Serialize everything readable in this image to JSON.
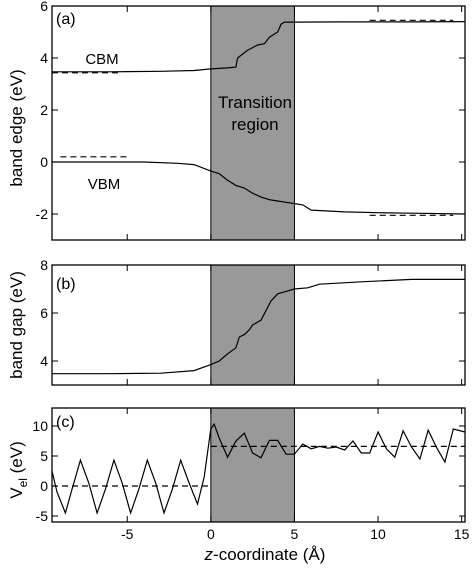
{
  "figure": {
    "x_axis": {
      "label_italic": "z",
      "label_rest": "-coordinate (Å)",
      "ticks": [
        "-5",
        "0",
        "5",
        "10",
        "15"
      ],
      "tick_values": [
        -5,
        0,
        5,
        10,
        15
      ],
      "range": [
        -9.5,
        15.2
      ]
    },
    "transition_region": {
      "x_start": 0,
      "x_end": 5,
      "label_line1": "Transition",
      "label_line2": "region"
    }
  },
  "chart_data": [
    {
      "type": "line",
      "panel_tag": "(a)",
      "ylabel": "band edge (eV)",
      "ylim": [
        -3,
        6
      ],
      "yticks": [
        "-2",
        "0",
        "2",
        "4",
        "6"
      ],
      "ytick_values": [
        -2,
        0,
        2,
        4,
        6
      ],
      "annotations": [
        "CBM",
        "VBM"
      ],
      "series": [
        {
          "name": "CBM",
          "x": [
            -9.5,
            -6,
            -3,
            -1,
            0,
            1,
            1.5,
            1.6,
            1.9,
            2.2,
            2.5,
            2.8,
            3.2,
            3.5,
            4,
            4.2,
            4.4,
            5,
            8,
            12,
            15.2
          ],
          "y": [
            3.47,
            3.47,
            3.49,
            3.52,
            3.58,
            3.62,
            3.65,
            4.0,
            4.15,
            4.3,
            4.4,
            4.5,
            4.55,
            4.8,
            5.0,
            5.3,
            5.38,
            5.38,
            5.39,
            5.39,
            5.4
          ]
        },
        {
          "name": "VBM",
          "x": [
            -9.5,
            -4,
            -2,
            -1,
            0,
            0.5,
            1,
            1.5,
            2,
            2.5,
            3,
            3.5,
            4,
            4.5,
            5,
            5.5,
            6,
            8,
            10,
            12,
            15.2
          ],
          "y": [
            0.0,
            0.0,
            -0.05,
            -0.1,
            -0.35,
            -0.45,
            -0.7,
            -0.9,
            -1.0,
            -1.2,
            -1.35,
            -1.45,
            -1.5,
            -1.55,
            -1.6,
            -1.65,
            -1.85,
            -1.92,
            -1.95,
            -1.97,
            -2.0
          ]
        },
        {
          "x": [
            -9.5,
            -5.5
          ],
          "y": [
            3.43,
            3.43
          ],
          "style": "dashed"
        },
        {
          "x": [
            -9.0,
            -5.0
          ],
          "y": [
            0.2,
            0.2
          ],
          "style": "dashed"
        },
        {
          "x": [
            9.5,
            14.5
          ],
          "y": [
            5.45,
            5.45
          ],
          "style": "dashed"
        },
        {
          "x": [
            9.5,
            14.5
          ],
          "y": [
            -2.05,
            -2.05
          ],
          "style": "dashed"
        }
      ]
    },
    {
      "type": "line",
      "panel_tag": "(b)",
      "ylabel": "band gap (eV)",
      "ylim": [
        3,
        8
      ],
      "yticks": [
        "4",
        "6",
        "8"
      ],
      "ytick_values": [
        4,
        6,
        8
      ],
      "series": [
        {
          "x": [
            -9.5,
            -6,
            -3,
            -1,
            0,
            0.5,
            1,
            1.5,
            1.7,
            2,
            2.3,
            2.5,
            3,
            3.3,
            3.6,
            4,
            4.5,
            5,
            5.8,
            6.5,
            9,
            12,
            15.2
          ],
          "y": [
            3.47,
            3.47,
            3.49,
            3.6,
            3.85,
            4.0,
            4.3,
            4.55,
            5.0,
            5.1,
            5.3,
            5.5,
            5.7,
            6.1,
            6.5,
            6.8,
            6.9,
            7.0,
            7.05,
            7.2,
            7.3,
            7.4,
            7.4
          ]
        }
      ]
    },
    {
      "type": "line",
      "panel_tag": "(c)",
      "ylabel": "V",
      "ylabel_subscript": "el",
      "ylabel_unit": " (eV)",
      "ylim": [
        -6,
        13
      ],
      "yticks": [
        "-5",
        "0",
        "5",
        "10"
      ],
      "ytick_values": [
        -5,
        0,
        5,
        10
      ],
      "series": [
        {
          "x": [
            -9.5,
            -9.2,
            -8.7,
            -8.3,
            -7.8,
            -7.3,
            -6.8,
            -6.3,
            -5.8,
            -5.3,
            -4.8,
            -4.3,
            -3.8,
            -3.3,
            -2.8,
            -2.3,
            -1.8,
            -1.3,
            -0.8,
            -0.4,
            0,
            0.2,
            0.5,
            1.0,
            1.5,
            2.0,
            2.5,
            3.0,
            3.5,
            4.0,
            4.5,
            5.0,
            5.5,
            6.0,
            6.5,
            7.0,
            7.5,
            8.0,
            8.5,
            9.0,
            9.5,
            10.0,
            10.5,
            11.0,
            11.5,
            12.0,
            12.5,
            13.0,
            13.5,
            14.0,
            14.5,
            15.2
          ],
          "y": [
            2.5,
            -1.0,
            -4.5,
            -0.5,
            4.3,
            0.5,
            -4.5,
            -0.5,
            4.3,
            0.5,
            -4.5,
            -0.5,
            4.3,
            0.5,
            -4.5,
            -0.5,
            4.3,
            0.5,
            -3.0,
            1.5,
            9.5,
            10.3,
            8.0,
            4.8,
            7.5,
            8.8,
            5.5,
            4.7,
            7.6,
            7.6,
            5.3,
            5.3,
            7.0,
            6.2,
            6.6,
            6.3,
            6.5,
            6.0,
            7.5,
            5.5,
            5.5,
            9.0,
            6.2,
            4.8,
            9.2,
            6.5,
            4.5,
            9.3,
            6.4,
            4.0,
            9.5,
            9.0
          ]
        },
        {
          "x": [
            -9.5,
            0
          ],
          "y": [
            0,
            0
          ],
          "style": "dashed"
        },
        {
          "x": [
            0,
            15.2
          ],
          "y": [
            6.6,
            6.6
          ],
          "style": "dashed"
        }
      ]
    }
  ]
}
